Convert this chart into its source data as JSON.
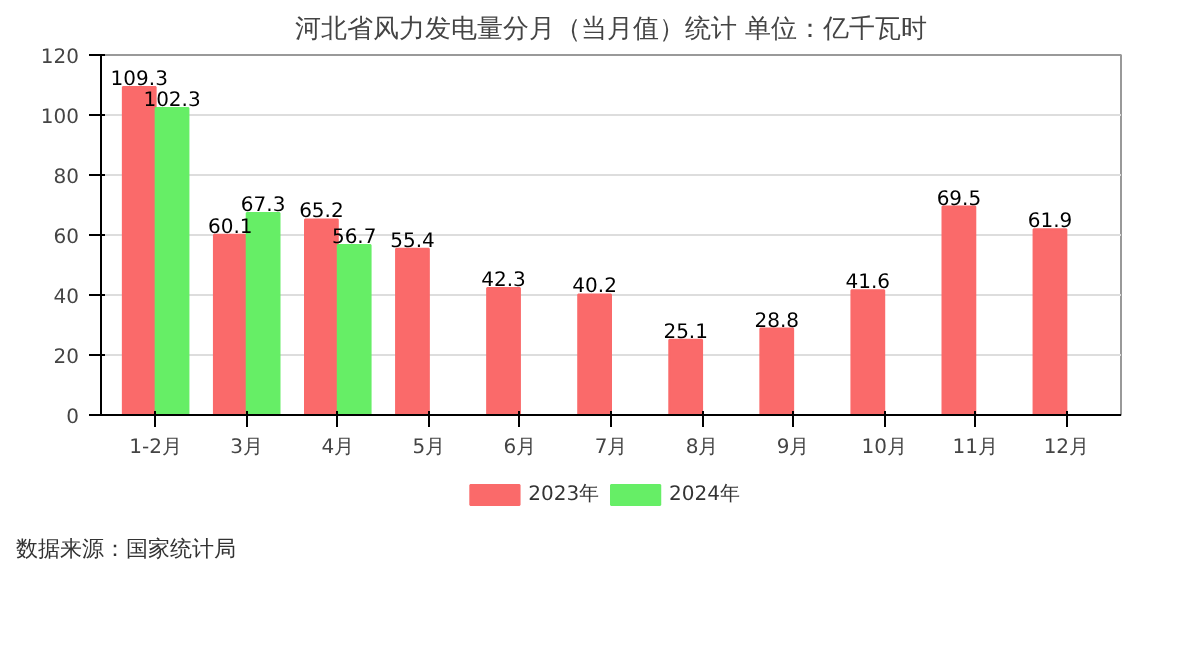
{
  "chart_data": {
    "type": "bar",
    "title": "河北省风力发电量分月（当月值）统计 单位：亿千瓦时",
    "categories": [
      "1-2月",
      "3月",
      "4月",
      "5月",
      "6月",
      "7月",
      "8月",
      "9月",
      "10月",
      "11月",
      "12月"
    ],
    "series": [
      {
        "name": "2023年",
        "color": "#fa6a6a",
        "values": [
          109.3,
          60.1,
          65.2,
          55.4,
          42.3,
          40.2,
          25.1,
          28.8,
          41.6,
          69.5,
          61.9
        ]
      },
      {
        "name": "2024年",
        "color": "#66ee66",
        "values": [
          102.3,
          67.3,
          56.7,
          null,
          null,
          null,
          null,
          null,
          null,
          null,
          null
        ]
      }
    ],
    "ylim": [
      0,
      120
    ],
    "yticks": [
      0,
      20,
      40,
      60,
      80,
      100,
      120
    ],
    "grid": "y",
    "legend": "bottom",
    "data_labels": true,
    "annotations": [
      "数据来源：国家统计局"
    ]
  }
}
